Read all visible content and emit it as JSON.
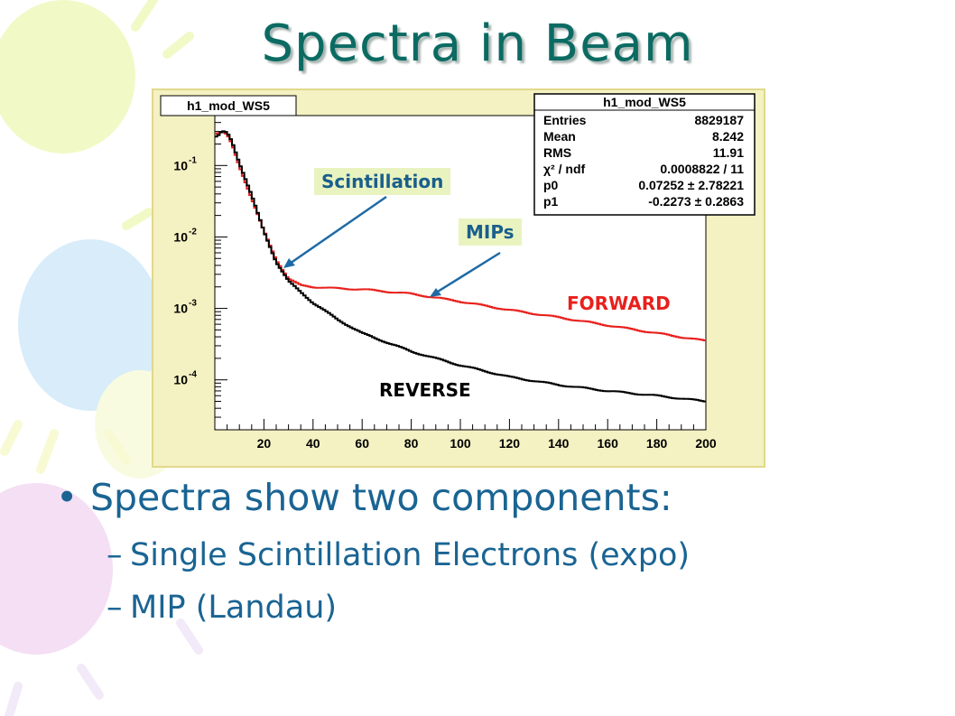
{
  "slide": {
    "title": "Spectra in Beam"
  },
  "histogram": {
    "title_box": "h1_mod_WS5",
    "stats": {
      "title": "h1_mod_WS5",
      "rows": [
        {
          "label": "Entries",
          "value": "8829187"
        },
        {
          "label": "Mean",
          "value": "8.242"
        },
        {
          "label": "RMS",
          "value": "11.91"
        },
        {
          "label": "χ² / ndf",
          "value": "0.0008822 / 11"
        },
        {
          "label": "p0",
          "value": "0.07252 ± 2.78221"
        },
        {
          "label": "p1",
          "value": "-0.2273 ± 0.2863"
        }
      ]
    }
  },
  "annotations": {
    "scintillation": "Scintillation",
    "mips": "MIPs",
    "forward": "FORWARD",
    "reverse": "REVERSE"
  },
  "colors": {
    "forward": "#e8201c",
    "reverse": "#000000",
    "arrow": "#1f6aa5"
  },
  "chart_data": {
    "type": "line",
    "title": "",
    "xlabel": "",
    "ylabel": "",
    "xlim": [
      0,
      200
    ],
    "ylim": [
      2e-05,
      0.5
    ],
    "yscale": "log",
    "x_ticks": [
      20,
      40,
      60,
      80,
      100,
      120,
      140,
      160,
      180,
      200
    ],
    "y_ticks": [
      {
        "value": 0.1,
        "label_base": "10",
        "label_exp": "-1"
      },
      {
        "value": 0.01,
        "label_base": "10",
        "label_exp": "-2"
      },
      {
        "value": 0.001,
        "label_base": "10",
        "label_exp": "-3"
      },
      {
        "value": 0.0001,
        "label_base": "10",
        "label_exp": "-4"
      }
    ],
    "series": [
      {
        "name": "FORWARD",
        "x": [
          1,
          3,
          5,
          7,
          10,
          15,
          20,
          25,
          30,
          35,
          40,
          50,
          60,
          80,
          100,
          120,
          140,
          160,
          180,
          200
        ],
        "y": [
          0.28,
          0.29,
          0.27,
          0.2,
          0.1,
          0.035,
          0.012,
          0.0048,
          0.0026,
          0.0021,
          0.002,
          0.0019,
          0.00185,
          0.0016,
          0.00125,
          0.00095,
          0.00075,
          0.00058,
          0.00045,
          0.00035
        ]
      },
      {
        "name": "REVERSE",
        "x": [
          1,
          3,
          5,
          7,
          10,
          15,
          20,
          25,
          30,
          35,
          40,
          50,
          60,
          80,
          100,
          120,
          140,
          160,
          180,
          200
        ],
        "y": [
          0.25,
          0.3,
          0.29,
          0.22,
          0.11,
          0.038,
          0.012,
          0.0045,
          0.0024,
          0.0017,
          0.0012,
          0.0007,
          0.00045,
          0.00025,
          0.00016,
          0.00011,
          8.5e-05,
          7e-05,
          6e-05,
          5e-05
        ]
      }
    ]
  },
  "bullets": [
    {
      "level": 1,
      "marker": "•",
      "text": "Spectra show two components:"
    },
    {
      "level": 2,
      "marker": "–",
      "text": "Single Scintillation Electrons (expo)"
    },
    {
      "level": 2,
      "marker": "–",
      "text": "MIP (Landau)"
    }
  ]
}
